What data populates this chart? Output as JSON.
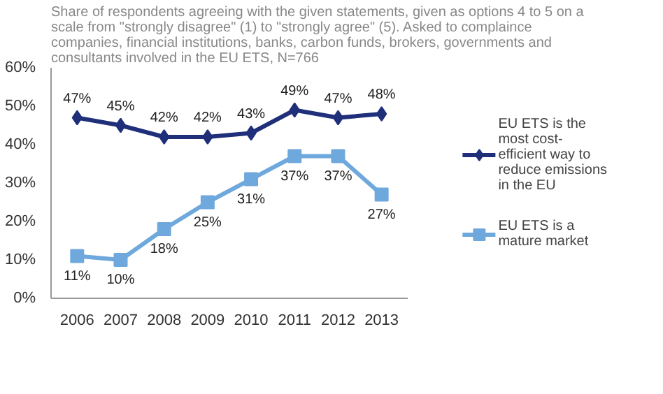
{
  "chart_data": {
    "type": "line",
    "subtitle": "Share of respondents agreeing with the given statements, given as options 4 to 5 on a scale from \"strongly disagree\" (1) to \"strongly agree\" (5). Asked to complaince companies, financial institutions, banks, carbon funds, brokers, governments and consultants involved in the EU ETS, N=766",
    "categories": [
      "2006",
      "2007",
      "2008",
      "2009",
      "2010",
      "2011",
      "2012",
      "2013"
    ],
    "series": [
      {
        "name": "EU ETS is the most cost-efficient way to reduce emissions in the EU",
        "color": "#1f2f7a",
        "marker": "diamond",
        "values": [
          47,
          45,
          42,
          42,
          43,
          49,
          47,
          48
        ],
        "value_labels": [
          "47%",
          "45%",
          "42%",
          "42%",
          "43%",
          "49%",
          "47%",
          "48%"
        ]
      },
      {
        "name": "EU ETS is a mature market",
        "color": "#6fa8dc",
        "marker": "square",
        "values": [
          11,
          10,
          18,
          25,
          31,
          37,
          37,
          27
        ],
        "value_labels": [
          "11%",
          "10%",
          "18%",
          "25%",
          "31%",
          "37%",
          "37%",
          "27%"
        ]
      }
    ],
    "ylim": [
      0,
      60
    ],
    "yticks": [
      {
        "value": 0,
        "label": "0%"
      },
      {
        "value": 10,
        "label": "10%"
      },
      {
        "value": 20,
        "label": "20%"
      },
      {
        "value": 30,
        "label": "30%"
      },
      {
        "value": 40,
        "label": "40%"
      },
      {
        "value": 50,
        "label": "50%"
      },
      {
        "value": 60,
        "label": "60%"
      }
    ],
    "grid": false,
    "legend": "right",
    "line_style": "solid"
  }
}
